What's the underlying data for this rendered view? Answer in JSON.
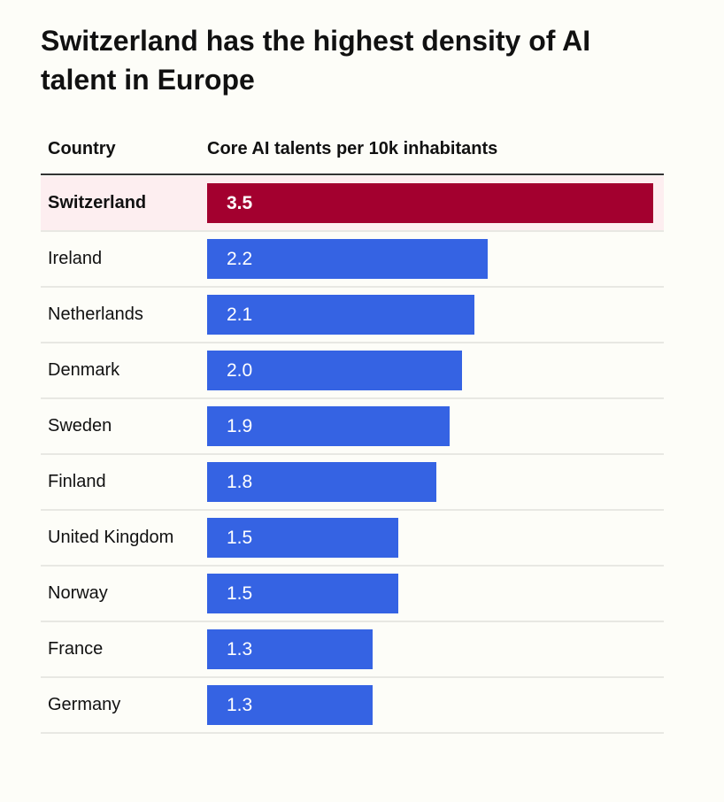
{
  "chart_data": {
    "type": "bar",
    "orientation": "horizontal",
    "title": "Switzerland has the highest density of AI talent in Europe",
    "column_headers": {
      "category": "Country",
      "value": "Core AI talents per 10k inhabitants"
    },
    "categories": [
      "Switzerland",
      "Ireland",
      "Netherlands",
      "Denmark",
      "Sweden",
      "Finland",
      "United Kingdom",
      "Norway",
      "France",
      "Germany"
    ],
    "values": [
      3.5,
      2.2,
      2.1,
      2.0,
      1.9,
      1.8,
      1.5,
      1.5,
      1.3,
      1.3
    ],
    "value_labels": [
      "3.5",
      "2.2",
      "2.1",
      "2.0",
      "1.9",
      "1.8",
      "1.5",
      "1.5",
      "1.3",
      "1.3"
    ],
    "highlight": "Switzerland",
    "xlim": [
      0,
      3.5
    ],
    "colors": {
      "highlight_bar": "#a3002f",
      "bar": "#3563e3",
      "highlight_row": "#fdeef0"
    }
  }
}
